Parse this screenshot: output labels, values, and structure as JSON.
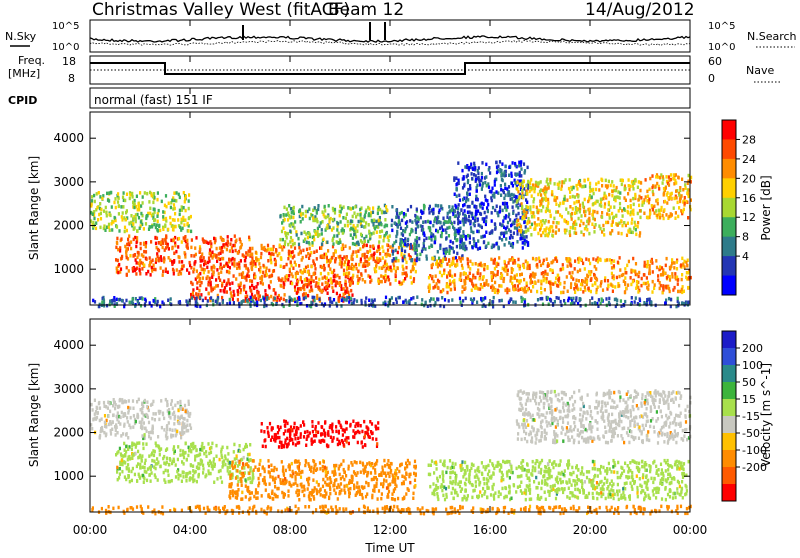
{
  "header": {
    "title": "Christmas Valley West (fitACF)",
    "beam": "Beam 12",
    "date": "14/Aug/2012"
  },
  "panels_top": {
    "nsky_label": "N.Sky",
    "nsearch_label": "N.Search",
    "noise_ticks": [
      "10^5",
      "10^0"
    ],
    "freq_label_1": "Freq.",
    "freq_label_2": "[MHz]",
    "freq_ticks": [
      "18",
      "8"
    ],
    "nave_label": "Nave",
    "nave_ticks": [
      "60",
      "0"
    ],
    "cpid_label": "CPID",
    "cpid_text": "normal (fast) 151 IF"
  },
  "x_axis": {
    "label": "Time UT",
    "ticks": [
      "00:00",
      "04:00",
      "08:00",
      "12:00",
      "16:00",
      "20:00",
      "00:00"
    ]
  },
  "chart_data": [
    {
      "type": "heatmap",
      "panel": "power",
      "ylabel": "Slant Range [km]",
      "xlabel": "",
      "x_range_hours": [
        0,
        24
      ],
      "ylim": [
        180,
        4600
      ],
      "y_ticks": [
        1000,
        2000,
        3000,
        4000
      ],
      "colorbar": {
        "label": "Power [dB]",
        "ticks": [
          "28",
          "24",
          "20",
          "16",
          "12",
          "8",
          "4"
        ],
        "colors": [
          "#ff0000",
          "#ff4a00",
          "#ff8c00",
          "#ffd000",
          "#a8d832",
          "#3cae5c",
          "#2e7b8a",
          "#2336b4",
          "#0000ff"
        ]
      },
      "regions": [
        {
          "t0": 0.0,
          "t1": 4.0,
          "r0": 1900,
          "r1": 2800,
          "v": 16
        },
        {
          "t0": 1.0,
          "t1": 6.5,
          "r0": 900,
          "r1": 1800,
          "v": 26
        },
        {
          "t0": 4.0,
          "t1": 10.5,
          "r0": 300,
          "r1": 900,
          "v": 27
        },
        {
          "t0": 6.5,
          "t1": 13.0,
          "r0": 700,
          "r1": 1600,
          "v": 24
        },
        {
          "t0": 7.5,
          "t1": 12.0,
          "r0": 1600,
          "r1": 2500,
          "v": 14
        },
        {
          "t0": 12.0,
          "t1": 15.0,
          "r0": 1200,
          "r1": 2500,
          "v": 8
        },
        {
          "t0": 13.5,
          "t1": 24.0,
          "r0": 500,
          "r1": 1300,
          "v": 23
        },
        {
          "t0": 14.5,
          "t1": 17.5,
          "r0": 1500,
          "r1": 3500,
          "v": 6
        },
        {
          "t0": 17.0,
          "t1": 22.0,
          "r0": 1800,
          "r1": 3100,
          "v": 19
        },
        {
          "t0": 22.0,
          "t1": 24.0,
          "r0": 2200,
          "r1": 3200,
          "v": 21
        },
        {
          "t0": 0.0,
          "t1": 24.0,
          "r0": 180,
          "r1": 400,
          "v": 7
        }
      ]
    },
    {
      "type": "heatmap",
      "panel": "velocity",
      "ylabel": "Slant Range [km]",
      "xlabel": "Time UT",
      "x_range_hours": [
        0,
        24
      ],
      "ylim": [
        180,
        4600
      ],
      "y_ticks": [
        1000,
        2000,
        3000,
        4000
      ],
      "colorbar": {
        "label": "Velocity [m s^-1]",
        "ticks": [
          "200",
          "100",
          "50",
          "15",
          "-15",
          "-50",
          "-100",
          "-200"
        ],
        "colors": [
          "#1c1cc8",
          "#2f4fd8",
          "#2a8a8a",
          "#3cb43c",
          "#a8e04c",
          "#c8c8c0",
          "#ffc000",
          "#ff8c00",
          "#ff5a00",
          "#ff0000"
        ]
      },
      "regions": [
        {
          "t0": 0.0,
          "t1": 4.0,
          "r0": 1900,
          "r1": 2800,
          "v": -5
        },
        {
          "t0": 1.0,
          "t1": 6.5,
          "r0": 900,
          "r1": 1800,
          "v": 0
        },
        {
          "t0": 5.5,
          "t1": 13.0,
          "r0": 500,
          "r1": 1400,
          "v": -70
        },
        {
          "t0": 6.8,
          "t1": 11.5,
          "r0": 1700,
          "r1": 2300,
          "v": -220
        },
        {
          "t0": 13.5,
          "t1": 24.0,
          "r0": 500,
          "r1": 1400,
          "v": 0
        },
        {
          "t0": 17.0,
          "t1": 24.0,
          "r0": 1800,
          "r1": 3000,
          "v": -5
        },
        {
          "t0": 0.0,
          "t1": 24.0,
          "r0": 180,
          "r1": 350,
          "v": -60
        }
      ]
    }
  ]
}
